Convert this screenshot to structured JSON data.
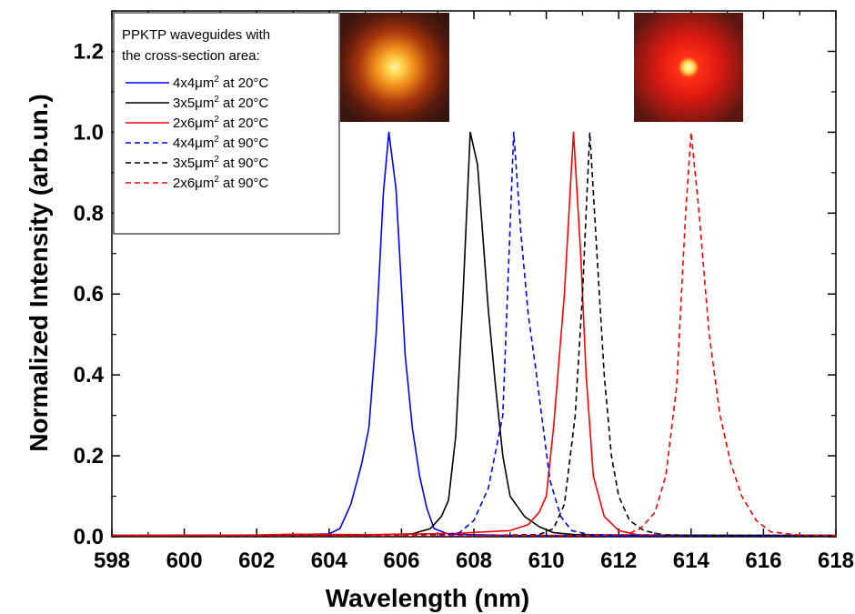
{
  "chart_data": {
    "type": "line",
    "xlabel": "Wavelength (nm)",
    "ylabel": "Normalized Intensity (arb.un.)",
    "xlim": [
      598,
      618
    ],
    "ylim": [
      0,
      1.3
    ],
    "xticks": [
      598,
      600,
      602,
      604,
      606,
      608,
      610,
      612,
      614,
      616,
      618
    ],
    "yticks": [
      0.0,
      0.2,
      0.4,
      0.6,
      0.8,
      1.0,
      1.2
    ],
    "ytick_labels": [
      "0.0",
      "0.2",
      "0.4",
      "0.6",
      "0.8",
      "1.0",
      "1.2"
    ],
    "legend": {
      "placement": "top-left",
      "header": [
        "PPKTP waveguides with",
        "the cross-section area:"
      ]
    },
    "series": [
      {
        "name": "4x4μm² at 20°C",
        "size": "4x4",
        "unit_base": "μm",
        "unit_sup": "2",
        "suffix": " at 20°C",
        "color": "#0000ff",
        "dashed": false,
        "points": [
          [
            598,
            0.003
          ],
          [
            602,
            0.003
          ],
          [
            604,
            0.007
          ],
          [
            604.3,
            0.02
          ],
          [
            604.6,
            0.08
          ],
          [
            604.9,
            0.18
          ],
          [
            605.1,
            0.27
          ],
          [
            605.3,
            0.5
          ],
          [
            605.5,
            0.85
          ],
          [
            605.65,
            1.0
          ],
          [
            605.85,
            0.86
          ],
          [
            606.1,
            0.45
          ],
          [
            606.3,
            0.27
          ],
          [
            606.5,
            0.15
          ],
          [
            606.7,
            0.07
          ],
          [
            606.9,
            0.02
          ],
          [
            607.3,
            0.006
          ],
          [
            609,
            0.003
          ],
          [
            618,
            0.003
          ]
        ]
      },
      {
        "name": "3x5μm² at 20°C",
        "size": "3x5",
        "unit_base": "μm",
        "unit_sup": "2",
        "suffix": " at 20°C",
        "color": "#000000",
        "dashed": false,
        "points": [
          [
            598,
            0.003
          ],
          [
            605,
            0.004
          ],
          [
            606.3,
            0.007
          ],
          [
            606.8,
            0.02
          ],
          [
            607.1,
            0.05
          ],
          [
            607.3,
            0.09
          ],
          [
            607.5,
            0.25
          ],
          [
            607.7,
            0.6
          ],
          [
            607.9,
            1.0
          ],
          [
            608.1,
            0.92
          ],
          [
            608.4,
            0.56
          ],
          [
            608.6,
            0.37
          ],
          [
            608.8,
            0.2
          ],
          [
            609.0,
            0.1
          ],
          [
            609.4,
            0.05
          ],
          [
            609.8,
            0.025
          ],
          [
            610.2,
            0.01
          ],
          [
            610.8,
            0.005
          ],
          [
            612,
            0.004
          ],
          [
            618,
            0.003
          ]
        ]
      },
      {
        "name": "2x6μm² at 20°C",
        "size": "2x6",
        "unit_base": "μm",
        "unit_sup": "2",
        "suffix": " at 20°C",
        "color": "#ff0000",
        "dashed": false,
        "points": [
          [
            598,
            0.003
          ],
          [
            602,
            0.004
          ],
          [
            603,
            0.006
          ],
          [
            605,
            0.005
          ],
          [
            607.5,
            0.008
          ],
          [
            608.3,
            0.012
          ],
          [
            609.0,
            0.015
          ],
          [
            609.5,
            0.03
          ],
          [
            609.8,
            0.06
          ],
          [
            610.0,
            0.1
          ],
          [
            610.2,
            0.27
          ],
          [
            610.5,
            0.6
          ],
          [
            610.75,
            1.0
          ],
          [
            610.95,
            0.7
          ],
          [
            611.1,
            0.4
          ],
          [
            611.3,
            0.15
          ],
          [
            611.6,
            0.05
          ],
          [
            612,
            0.015
          ],
          [
            612.5,
            0.005
          ],
          [
            613.5,
            0.003
          ],
          [
            618,
            0.003
          ]
        ]
      },
      {
        "name": "4x4μm² at 90°C",
        "size": "4x4",
        "unit_base": "μm",
        "unit_sup": "2",
        "suffix": " at 90°C",
        "color": "#0000ff",
        "dashed": true,
        "points": [
          [
            598,
            0.003
          ],
          [
            606,
            0.003
          ],
          [
            607.2,
            0.005
          ],
          [
            607.6,
            0.01
          ],
          [
            608.0,
            0.04
          ],
          [
            608.4,
            0.12
          ],
          [
            608.8,
            0.3
          ],
          [
            609.1,
            1.0
          ],
          [
            609.3,
            0.75
          ],
          [
            609.5,
            0.55
          ],
          [
            609.7,
            0.42
          ],
          [
            609.9,
            0.28
          ],
          [
            610.1,
            0.14
          ],
          [
            610.4,
            0.05
          ],
          [
            610.7,
            0.015
          ],
          [
            611.2,
            0.005
          ],
          [
            613,
            0.003
          ],
          [
            618,
            0.003
          ]
        ]
      },
      {
        "name": "3x5μm² at 90°C",
        "size": "3x5",
        "unit_base": "μm",
        "unit_sup": "2",
        "suffix": " at 90°C",
        "color": "#000000",
        "dashed": true,
        "points": [
          [
            598,
            0.003
          ],
          [
            608,
            0.003
          ],
          [
            609.8,
            0.005
          ],
          [
            610.2,
            0.02
          ],
          [
            610.5,
            0.08
          ],
          [
            610.8,
            0.3
          ],
          [
            611.0,
            0.6
          ],
          [
            611.2,
            1.0
          ],
          [
            611.4,
            0.7
          ],
          [
            611.6,
            0.4
          ],
          [
            611.8,
            0.2
          ],
          [
            612.0,
            0.1
          ],
          [
            612.3,
            0.04
          ],
          [
            612.7,
            0.015
          ],
          [
            613.2,
            0.005
          ],
          [
            614,
            0.003
          ],
          [
            618,
            0.003
          ]
        ]
      },
      {
        "name": "2x6μm² at 90°C",
        "size": "2x6",
        "unit_base": "μm",
        "unit_sup": "2",
        "suffix": " at 90°C",
        "color": "#ff0000",
        "dashed": true,
        "points": [
          [
            598,
            0.003
          ],
          [
            611,
            0.003
          ],
          [
            612.2,
            0.005
          ],
          [
            612.6,
            0.02
          ],
          [
            613.0,
            0.06
          ],
          [
            613.3,
            0.15
          ],
          [
            613.6,
            0.37
          ],
          [
            613.85,
            0.8
          ],
          [
            614.0,
            1.0
          ],
          [
            614.2,
            0.82
          ],
          [
            614.5,
            0.5
          ],
          [
            614.8,
            0.3
          ],
          [
            615.1,
            0.18
          ],
          [
            615.4,
            0.1
          ],
          [
            615.8,
            0.04
          ],
          [
            616.2,
            0.012
          ],
          [
            617,
            0.004
          ],
          [
            618,
            0.003
          ]
        ]
      }
    ]
  },
  "insets": [
    {
      "name": "mode-profile-inset-1",
      "description": "mode image",
      "core": "#fff2a8",
      "mid": "#f59a1c",
      "edge": "#5a1608",
      "bg": "#3a1510"
    },
    {
      "name": "mode-profile-inset-2",
      "description": "mode image",
      "core": "#fffbe0",
      "mid": "#ff2a10",
      "edge": "#8a1410",
      "bg": "#5a1712"
    }
  ]
}
